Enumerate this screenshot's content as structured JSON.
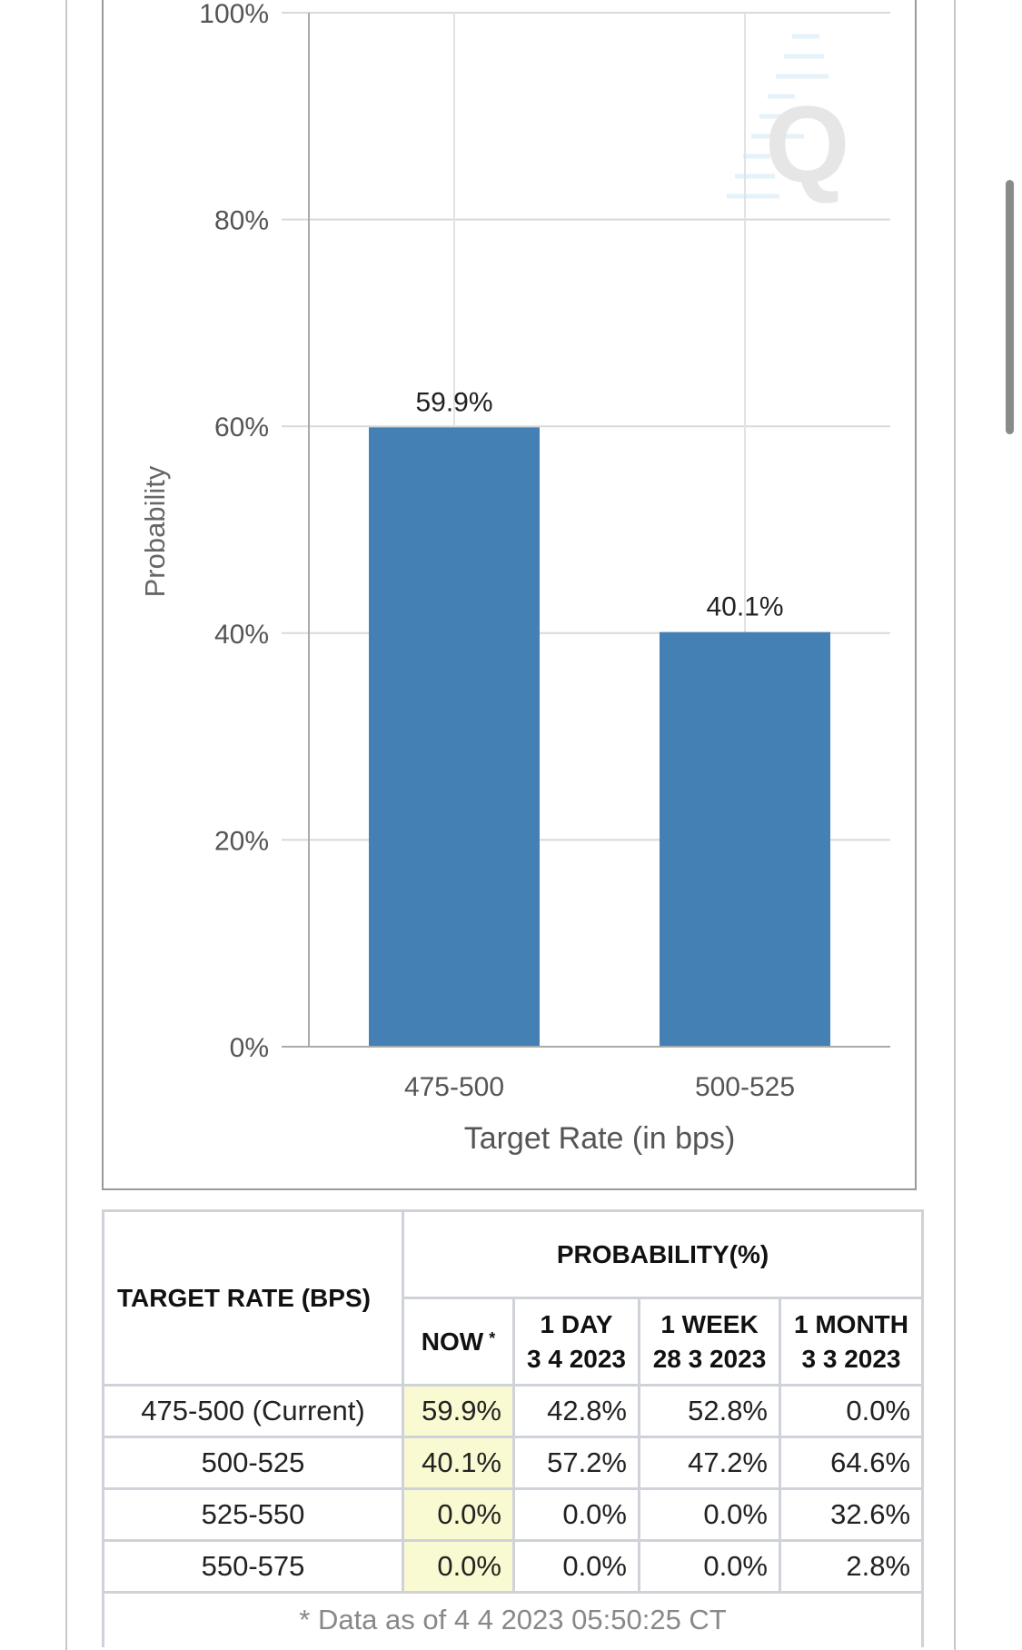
{
  "chart_data": {
    "type": "bar",
    "categories": [
      "475-500",
      "500-525"
    ],
    "values": [
      59.9,
      40.1
    ],
    "data_labels": [
      "59.9%",
      "40.1%"
    ],
    "xlabel": "Target Rate (in bps)",
    "ylabel": "Probability",
    "ylim": [
      0,
      100
    ],
    "yticks": [
      "0%",
      "20%",
      "40%",
      "60%",
      "80%",
      "100%"
    ],
    "grid": true,
    "bar_color": "#4580b4"
  },
  "table": {
    "target_rate_header": "TARGET RATE (BPS)",
    "probability_header": "PROBABILITY(%)",
    "columns": [
      {
        "line1": "NOW",
        "line2": "",
        "asterisk": "*"
      },
      {
        "line1": "1 DAY",
        "line2": "3 4 2023"
      },
      {
        "line1": "1 WEEK",
        "line2": "28 3 2023"
      },
      {
        "line1": "1 MONTH",
        "line2": "3 3 2023"
      }
    ],
    "rows": [
      {
        "rate": "475-500 (Current)",
        "now": "59.9%",
        "day": "42.8%",
        "week": "52.8%",
        "month": "0.0%"
      },
      {
        "rate": "500-525",
        "now": "40.1%",
        "day": "57.2%",
        "week": "47.2%",
        "month": "64.6%"
      },
      {
        "rate": "525-550",
        "now": "0.0%",
        "day": "0.0%",
        "week": "0.0%",
        "month": "32.6%"
      },
      {
        "rate": "550-575",
        "now": "0.0%",
        "day": "0.0%",
        "week": "0.0%",
        "month": "2.8%"
      }
    ],
    "footnote": "* Data as of 4 4 2023 05:50:25 CT"
  },
  "colors": {
    "now_highlight": "#fafad2",
    "table_border": "#cfd3d9"
  }
}
